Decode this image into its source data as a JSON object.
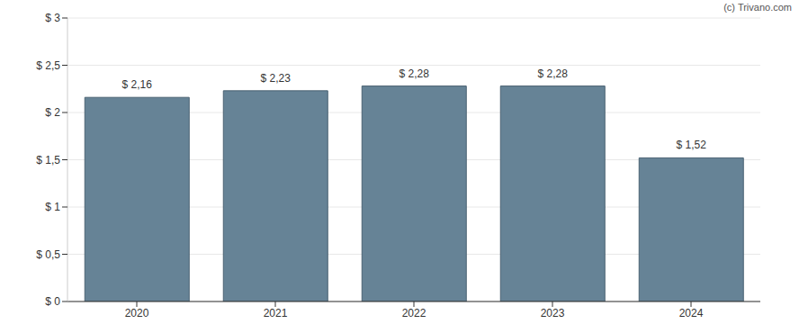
{
  "chart_data": {
    "type": "bar",
    "annotation": "(c) Trivano.com",
    "categories": [
      "2020",
      "2021",
      "2022",
      "2023",
      "2024"
    ],
    "values": [
      2.16,
      2.23,
      2.28,
      2.28,
      1.52
    ],
    "value_labels": [
      "$ 2,16",
      "$ 2,23",
      "$ 2,28",
      "$ 2,28",
      "$ 1,52"
    ],
    "color": "#668396",
    "ylim": [
      0,
      3
    ],
    "yticks": [
      {
        "value": 0,
        "label": "$ 0"
      },
      {
        "value": 0.5,
        "label": "$ 0,5"
      },
      {
        "value": 1,
        "label": "$ 1"
      },
      {
        "value": 1.5,
        "label": "$ 1,5"
      },
      {
        "value": 2,
        "label": "$ 2"
      },
      {
        "value": 2.5,
        "label": "$ 2,5"
      },
      {
        "value": 3,
        "label": "$ 3"
      }
    ],
    "grid": true,
    "data_labels": true
  }
}
